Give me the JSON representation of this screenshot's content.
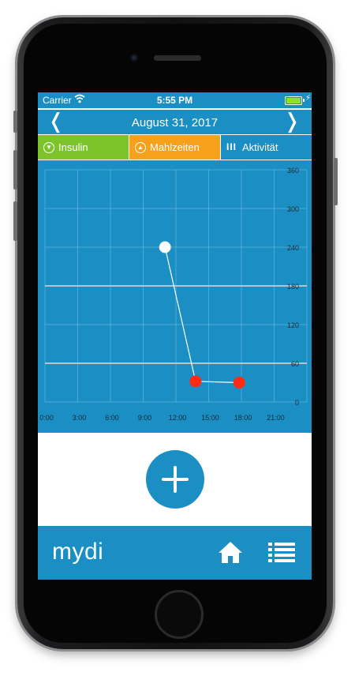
{
  "statusbar": {
    "carrier": "Carrier",
    "time": "5:55 PM"
  },
  "datebar": {
    "date": "August 31, 2017",
    "prev_icon": "chevron-left-icon",
    "next_icon": "chevron-right-icon"
  },
  "tabs": [
    {
      "label": "Insulin",
      "icon": "insulin-circle-icon",
      "color": "#7cc42a"
    },
    {
      "label": "Mahlzeiten",
      "icon": "meal-triangle-icon",
      "color": "#f5a11c"
    },
    {
      "label": "Aktivität",
      "icon": "activity-bars-icon",
      "color": "#1b8fc3"
    }
  ],
  "chart_data": {
    "type": "line",
    "title": "",
    "xlabel": "",
    "ylabel": "",
    "x_ticks": [
      "0:00",
      "3:00",
      "6:00",
      "9:00",
      "12:00",
      "15:00",
      "18:00",
      "21:00"
    ],
    "y_ticks": [
      "360",
      "300",
      "240",
      "180",
      "120",
      "60",
      "0"
    ],
    "xlim": [
      0,
      24
    ],
    "ylim": [
      0,
      360
    ],
    "reference_lines": [
      180,
      60
    ],
    "grid": true,
    "series": [
      {
        "points": [
          {
            "x": 11.0,
            "y": 240,
            "color": "#ffffff"
          },
          {
            "x": 13.8,
            "y": 32,
            "color": "#ff2a12"
          },
          {
            "x": 17.8,
            "y": 30,
            "color": "#ff2a12"
          }
        ]
      }
    ]
  },
  "footer": {
    "logo_my": "my",
    "logo_di": "di",
    "home_icon": "home-icon",
    "list_icon": "list-icon"
  },
  "colors": {
    "primary": "#1b8fc3",
    "insulin": "#7cc42a",
    "meals": "#f5a11c",
    "low_reading": "#ff2a12",
    "high_reading": "#ffffff"
  }
}
